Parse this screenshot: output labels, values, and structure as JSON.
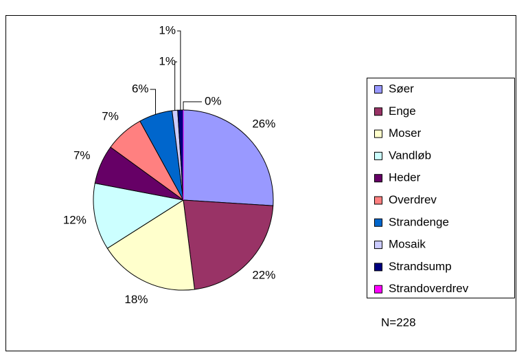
{
  "chart_data": {
    "type": "pie",
    "categories": [
      "Søer",
      "Enge",
      "Moser",
      "Vandløb",
      "Heder",
      "Overdrev",
      "Strandenge",
      "Mosaik",
      "Strandsump",
      "Strandoverdrev"
    ],
    "values": [
      26,
      22,
      18,
      12,
      7,
      7,
      6,
      1,
      1,
      0
    ],
    "value_labels": [
      "26%",
      "22%",
      "18%",
      "12%",
      "7%",
      "7%",
      "6%",
      "1%",
      "1%",
      "0%"
    ],
    "colors": [
      "#9999ff",
      "#993366",
      "#ffffcc",
      "#ccffff",
      "#660066",
      "#ff8080",
      "#0066cc",
      "#ccccff",
      "#000080",
      "#ff00ff"
    ],
    "annotation": "N=228",
    "legend": "right"
  }
}
